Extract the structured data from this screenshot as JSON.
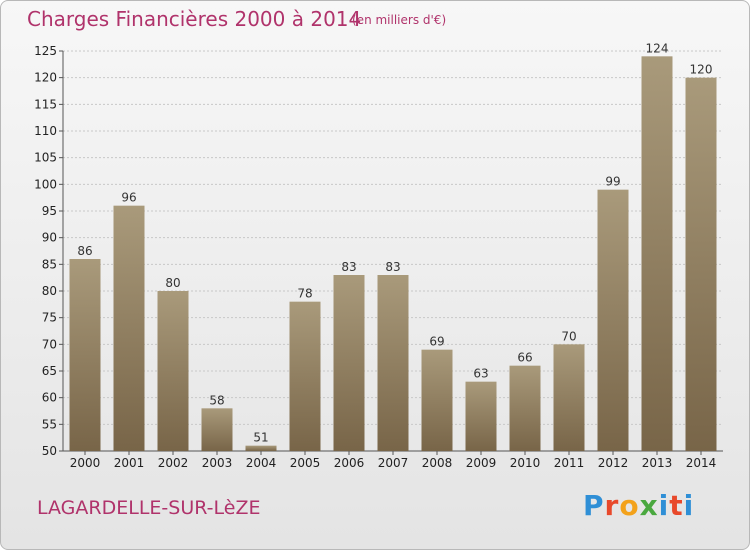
{
  "header": {
    "title": "Charges Financières 2000 à 2014",
    "subtitle": "(en milliers d'€)"
  },
  "footer": {
    "commune": "LAGARDELLE-SUR-LèZE",
    "logo_text": "Proxiti"
  },
  "colors": {
    "accent": "#b0336b",
    "bar_top": "#a99a7b",
    "bar_bottom": "#786548"
  },
  "chart_data": {
    "type": "bar",
    "title": "Charges Financières 2000 à 2014",
    "subtitle": "(en milliers d'€)",
    "categories": [
      "2000",
      "2001",
      "2002",
      "2003",
      "2004",
      "2005",
      "2006",
      "2007",
      "2008",
      "2009",
      "2010",
      "2011",
      "2012",
      "2013",
      "2014"
    ],
    "values": [
      86,
      96,
      80,
      58,
      51,
      78,
      83,
      83,
      69,
      63,
      66,
      70,
      99,
      124,
      120
    ],
    "ylim": [
      50,
      125
    ],
    "yticks": [
      50,
      55,
      60,
      65,
      70,
      75,
      80,
      85,
      90,
      95,
      100,
      105,
      110,
      115,
      120,
      125
    ],
    "grid": true
  }
}
